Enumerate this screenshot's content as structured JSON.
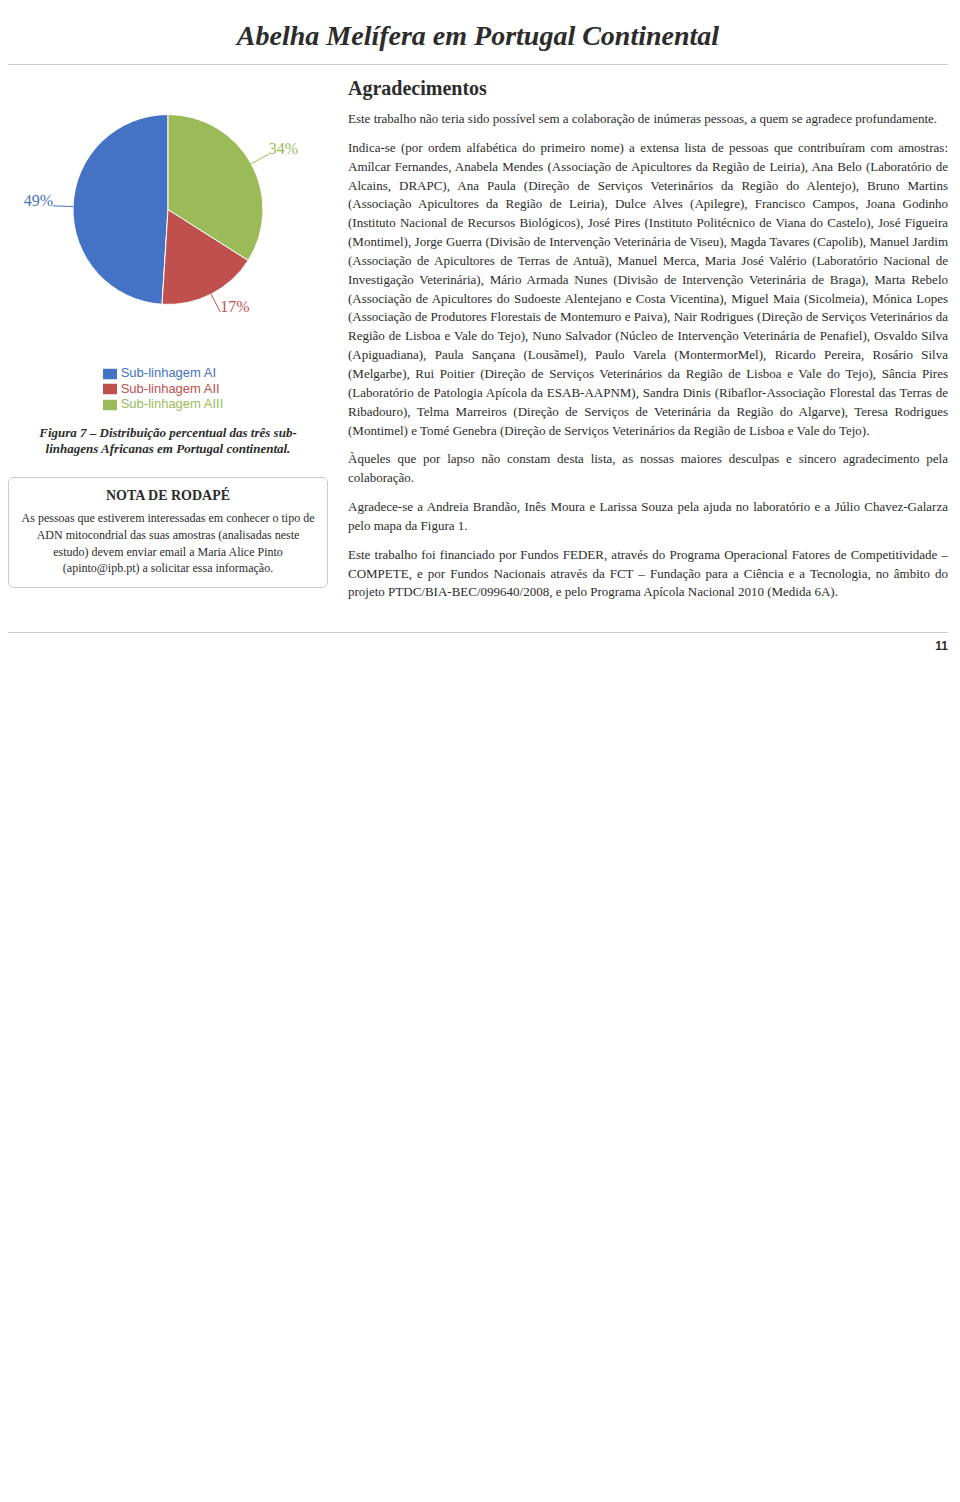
{
  "chart_data": {
    "type": "pie",
    "title": "Abelha Melífera em Portugal Continental",
    "categories": [
      "Sub-linhagem AI",
      "Sub-linhagem AII",
      "Sub-linhagem AIII"
    ],
    "values": [
      49,
      17,
      34
    ],
    "value_labels": [
      "49%",
      "17%",
      "34%"
    ],
    "colors": [
      "#4472C4",
      "#C0504D",
      "#9BBB59"
    ],
    "data_labels": true,
    "legend": "bottom",
    "annotations": [
      "Figura 7 – Distribuição percentual das três sub-\nlinhagens Africanas em Portugal continental.",
      "NOTA DE RODAPÉ",
      "As pessoas que estiverem interessadas em conhecer o tipo de ADN mitocondrial das suas amostras (analisadas neste estudo) devem enviar email a Maria Alice Pinto (apinto@ipb.pt) a solicitar essa informação.",
      "Agradecimentos",
      "Este trabalho não teria sido possível sem a colaboração de inúmeras pessoas, a quem se agradece profundamente.",
      "Indica-se (por ordem alfabética do primeiro nome) a extensa lista de pessoas que contribuíram com amostras: Amílcar Fernandes, Anabela Mendes (Associação de Apicultores da Região de Leiria), Ana Belo (Laboratório de Alcains, DRAPC), Ana Paula (Direção de Serviços Veterinários da Região do Alentejo), Bruno Martins (Associação Apicultores da Região de Leiria), Dulce Alves (Apilegre), Francisco Campos, Joana Godinho (Instituto Nacional de Recursos Biológicos), José Pires (Instituto Politécnico de Viana do Castelo), José Figueira (Montimel), Jorge Guerra (Divisão de Intervenção Veterinária de Viseu), Magda Tavares (Capolib), Manuel Jardim (Associação de Apicultores de Terras de Antuã), Manuel Merca, Maria José Valério (Laboratório Nacional de Investigação Veterinária), Mário Armada Nunes (Divisão de Intervenção Veterinária de Braga), Marta Rebelo (Associação de Apicultores do Sudoeste Alentejano e Costa Vicentina), Miguel Maia (Sicolmeia), Mónica Lopes (Associação de Produtores Florestais de Montemuro e Paiva), Nair Rodrigues (Direção de Serviços Veterinários da Região de Lisboa e Vale do Tejo), Nuno Salvador (Núcleo de Intervenção Veterinária de Penafiel), Osvaldo Silva (Apiguadiana), Paula Sançana (Lousãmel), Paulo Varela (MontermorMel), Ricardo Pereira, Rosário Silva (Melgarbe), Rui Poitier (Direção de Serviços Veterinários da Região de Lisboa e Vale do Tejo), Sância Pires (Laboratório de Patologia Apícola da ESAB-AAPNM), Sandra Dinis (Ribaflor-Associação Florestal das Terras de Ribadouro), Telma Marreiros (Direção de Serviços de Veterinária da Região do Algarve), Teresa Rodrigues (Montimel) e Tomé Genebra (Direção de Serviços Veterinários da Região de Lisboa e Vale do Tejo).",
      "Àqueles que por lapso não constam desta lista, as nossas maiores desculpas e sincero agradecimento pela colaboração.",
      "Agradece-se a Andreia Brandão, Inês Moura e Larissa Souza pela ajuda no laboratório e a Júlio Chavez-Galarza pelo mapa da Figura 1.",
      "Este trabalho foi financiado por Fundos FEDER, através do Programa Operacional Fatores de Competitividade – COMPETE, e por Fundos Nacionais através da FCT – Fundação para a Ciência e a Tecnologia, no âmbito do projeto PTDC/BIA-BEC/099640/2008, e pelo Programa Apícola Nacional 2010 (Medida 6A).",
      "11"
    ]
  }
}
